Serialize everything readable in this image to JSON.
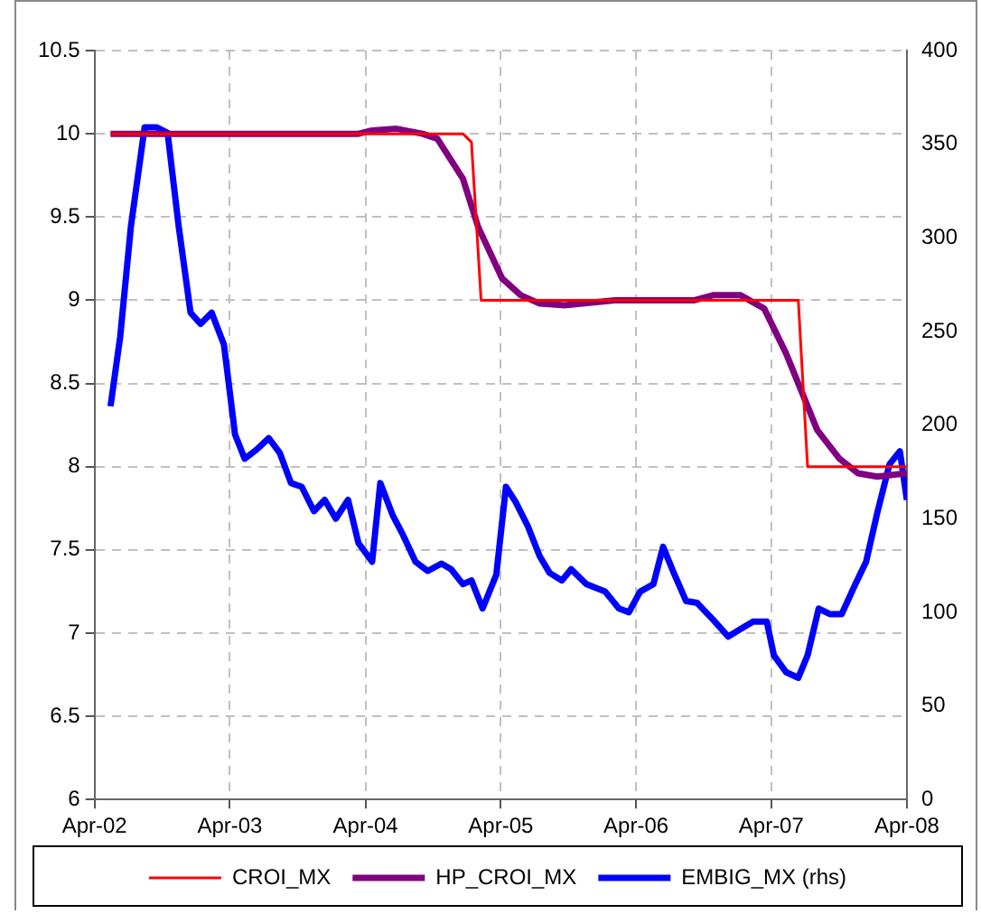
{
  "chart_data": {
    "type": "line",
    "xlim": [
      "2002-04-01",
      "2008-04-01"
    ],
    "xticks": [
      {
        "value": "2002-04-01",
        "label": "Apr-02"
      },
      {
        "value": "2003-04-01",
        "label": "Apr-03"
      },
      {
        "value": "2004-04-01",
        "label": "Apr-04"
      },
      {
        "value": "2005-04-01",
        "label": "Apr-05"
      },
      {
        "value": "2006-04-01",
        "label": "Apr-06"
      },
      {
        "value": "2007-04-01",
        "label": "Apr-07"
      },
      {
        "value": "2008-04-01",
        "label": "Apr-08"
      }
    ],
    "ylim": [
      6,
      10.5
    ],
    "yticks": [
      6,
      6.5,
      7,
      7.5,
      8,
      8.5,
      9,
      9.5,
      10,
      10.5
    ],
    "y2lim": [
      0,
      400
    ],
    "y2ticks": [
      0,
      50,
      100,
      150,
      200,
      250,
      300,
      350,
      400
    ],
    "grid": true,
    "legend": "bottom",
    "marker": "none",
    "series": [
      {
        "name": "CROI_MX",
        "color": "#ff0000",
        "x": [
          "2002-05-14",
          "2004-12-20",
          "2005-01-12",
          "2005-02-07",
          "2007-06-13",
          "2007-07-08",
          "2008-04-01"
        ],
        "values": [
          10,
          10,
          9.95,
          9,
          9,
          8,
          8
        ]
      },
      {
        "name": "HP_CROI_MX",
        "color": "#800080",
        "x": [
          "2002-05-14",
          "2004-03-13",
          "2004-04-19",
          "2004-06-24",
          "2004-09-02",
          "2004-10-12",
          "2004-12-20",
          "2005-01-30",
          "2005-04-05",
          "2005-05-25",
          "2005-07-15",
          "2005-09-20",
          "2006-02-03",
          "2006-09-06",
          "2006-10-26",
          "2007-01-08",
          "2007-03-13",
          "2007-05-11",
          "2007-06-24",
          "2007-08-03",
          "2007-10-01",
          "2007-11-21",
          "2008-01-12",
          "2008-04-01"
        ],
        "values": [
          10,
          10,
          10.02,
          10.03,
          10,
          9.97,
          9.73,
          9.44,
          9.13,
          9.03,
          8.98,
          8.97,
          9,
          9,
          9.03,
          9.03,
          8.95,
          8.68,
          8.44,
          8.22,
          8.05,
          7.96,
          7.94,
          7.96
        ]
      },
      {
        "name": "EMBIG_MX (rhs)",
        "color": "#0000ff",
        "axis": "y2",
        "x": [
          "2002-05-14",
          "2002-06-09",
          "2002-07-08",
          "2002-08-14",
          "2002-09-16",
          "2002-10-15",
          "2002-11-14",
          "2002-12-16",
          "2003-01-12",
          "2003-02-11",
          "2003-03-16",
          "2003-04-15",
          "2003-05-11",
          "2003-06-13",
          "2003-07-15",
          "2003-08-14",
          "2003-09-13",
          "2003-10-12",
          "2003-11-14",
          "2003-12-13",
          "2004-01-12",
          "2004-02-14",
          "2004-03-13",
          "2004-04-19",
          "2004-05-11",
          "2004-06-13",
          "2004-07-12",
          "2004-08-14",
          "2004-09-16",
          "2004-10-23",
          "2004-11-18",
          "2004-12-20",
          "2005-01-12",
          "2005-02-11",
          "2005-03-20",
          "2005-04-15",
          "2005-05-11",
          "2005-06-13",
          "2005-07-15",
          "2005-08-11",
          "2005-09-13",
          "2005-10-08",
          "2005-11-18",
          "2006-01-08",
          "2006-02-14",
          "2006-03-13",
          "2006-04-12",
          "2006-05-18",
          "2006-06-13",
          "2006-07-12",
          "2006-08-14",
          "2006-09-13",
          "2006-10-26",
          "2006-12-06",
          "2007-01-08",
          "2007-02-11",
          "2007-03-20",
          "2007-04-08",
          "2007-05-11",
          "2007-06-13",
          "2007-07-08",
          "2007-08-07",
          "2007-09-06",
          "2007-10-08",
          "2007-11-14",
          "2007-12-13",
          "2008-01-12",
          "2008-02-14",
          "2008-03-13",
          "2008-04-01"
        ],
        "values": [
          210,
          247,
          306,
          359,
          359,
          356,
          306,
          260,
          254,
          260,
          243,
          195,
          182,
          187,
          193,
          185,
          169,
          167,
          154,
          160,
          150,
          160,
          137,
          127,
          169,
          152,
          141,
          127,
          122,
          126,
          123,
          115,
          117,
          102,
          120,
          167,
          159,
          146,
          130,
          121,
          117,
          123,
          115,
          111,
          102,
          100,
          111,
          115,
          135,
          121,
          106,
          105,
          96,
          87,
          91,
          95,
          95,
          77,
          68,
          65,
          77,
          102,
          99,
          99,
          115,
          127,
          153,
          179,
          186,
          160
        ]
      }
    ]
  }
}
